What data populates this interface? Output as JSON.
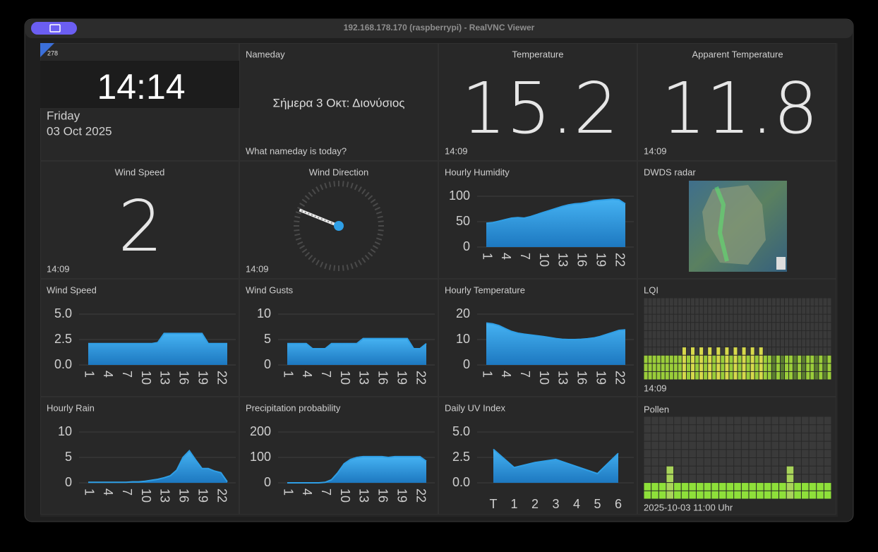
{
  "window": {
    "title": "192.168.178.170 (raspberrypi) - RealVNC Viewer"
  },
  "clock": {
    "badge": 278,
    "time": "14:14",
    "day": "Friday",
    "date": "03 Oct 2025"
  },
  "nameday": {
    "title": "Nameday",
    "text": "Σήμερα 3 Οκτ: Διονύσιος",
    "footer": "What nameday is today?"
  },
  "temperature": {
    "title": "Temperature",
    "value": 15.2,
    "time": "14:09"
  },
  "apparent_temperature": {
    "title": "Apparent Temperature",
    "value": 11.8,
    "time": "14:09"
  },
  "wind_speed": {
    "title": "Wind Speed",
    "value": 2,
    "time": "14:09"
  },
  "wind_direction": {
    "title": "Wind Direction",
    "degrees": 292,
    "time": "14:09"
  },
  "radar": {
    "title": "DWDS radar"
  },
  "lqi": {
    "title": "LQI",
    "time": "14:09",
    "levels": [
      1,
      1,
      1,
      1,
      1,
      1,
      1,
      1,
      1,
      2,
      1,
      2,
      1,
      2,
      1,
      2,
      1,
      2,
      1,
      2,
      1,
      2,
      1,
      2,
      1,
      2,
      1,
      2,
      1,
      1,
      0,
      1,
      0,
      1,
      1,
      0,
      1,
      0,
      1,
      1,
      0,
      1,
      0,
      1
    ]
  },
  "pollen": {
    "title": "Pollen",
    "footer": "2025-10-03 11:00 Uhr",
    "levels": [
      2,
      2,
      2,
      4,
      2,
      2,
      2,
      2,
      2,
      2,
      2,
      2,
      2,
      2,
      2,
      2,
      2,
      2,
      2,
      4,
      2,
      2,
      2,
      2,
      2
    ]
  },
  "chart_data": [
    {
      "type": "area",
      "title": "Hourly Humidity",
      "color": "#2f9fe6",
      "x": [
        1,
        2,
        3,
        4,
        5,
        6,
        7,
        8,
        9,
        10,
        11,
        12,
        13,
        14,
        15,
        16,
        17,
        18,
        19,
        20,
        21,
        22,
        23
      ],
      "xlim": [
        1,
        23
      ],
      "xticks": [
        1,
        4,
        7,
        10,
        13,
        16,
        19,
        22
      ],
      "values": [
        47,
        48,
        51,
        54,
        57,
        58,
        57,
        60,
        64,
        68,
        72,
        76,
        80,
        83,
        85,
        86,
        88,
        91,
        92,
        93,
        94,
        93,
        85
      ],
      "ylim": [
        0,
        100
      ],
      "yticks": [
        0,
        50,
        100
      ]
    },
    {
      "type": "area",
      "title": "Wind Speed",
      "color": "#2f9fe6",
      "x": [
        1,
        2,
        3,
        4,
        5,
        6,
        7,
        8,
        9,
        10,
        11,
        12,
        13,
        14,
        15,
        16,
        17,
        18,
        19,
        20,
        21,
        22,
        23
      ],
      "xlim": [
        1,
        23
      ],
      "xticks": [
        1,
        4,
        7,
        10,
        13,
        16,
        19,
        22
      ],
      "values": [
        2.1,
        2.1,
        2.1,
        2.1,
        2.1,
        2.1,
        2.1,
        2.1,
        2.1,
        2.1,
        2.1,
        2.2,
        3.1,
        3.1,
        3.1,
        3.1,
        3.1,
        3.1,
        3.1,
        2.1,
        2.1,
        2.1,
        2.1
      ],
      "ylim": [
        0,
        5
      ],
      "yticks": [
        {
          "value": 0,
          "label": "0.0"
        },
        2.5,
        {
          "value": 5,
          "label": "5.0"
        }
      ]
    },
    {
      "type": "area",
      "title": "Wind Gusts",
      "color": "#2f9fe6",
      "x": [
        1,
        2,
        3,
        4,
        5,
        6,
        7,
        8,
        9,
        10,
        11,
        12,
        13,
        14,
        15,
        16,
        17,
        18,
        19,
        20,
        21,
        22,
        23
      ],
      "xlim": [
        1,
        23
      ],
      "xticks": [
        1,
        4,
        7,
        10,
        13,
        16,
        19,
        22
      ],
      "values": [
        4.2,
        4.2,
        4.2,
        4.2,
        3.2,
        3.2,
        3.2,
        4.2,
        4.2,
        4.2,
        4.2,
        4.2,
        5.2,
        5.2,
        5.2,
        5.2,
        5.2,
        5.2,
        5.2,
        5.2,
        3.2,
        3.2,
        4.2
      ],
      "ylim": [
        0,
        10
      ],
      "yticks": [
        0,
        5,
        10
      ]
    },
    {
      "type": "area",
      "title": "Hourly Temperature",
      "color": "#2f9fe6",
      "x": [
        1,
        2,
        3,
        4,
        5,
        6,
        7,
        8,
        9,
        10,
        11,
        12,
        13,
        14,
        15,
        16,
        17,
        18,
        19,
        20,
        21,
        22,
        23
      ],
      "xlim": [
        1,
        23
      ],
      "xticks": [
        1,
        4,
        7,
        10,
        13,
        16,
        19,
        22
      ],
      "values": [
        16.5,
        16.2,
        15.5,
        14.3,
        13.2,
        12.5,
        12.1,
        11.8,
        11.5,
        11.2,
        10.8,
        10.4,
        10.1,
        10,
        10,
        10.1,
        10.3,
        10.6,
        11.2,
        12,
        12.8,
        13.6,
        13.8
      ],
      "ylim": [
        0,
        20
      ],
      "yticks": [
        0,
        10,
        20
      ]
    },
    {
      "type": "area",
      "title": "Hourly Rain",
      "color": "#2f9fe6",
      "x": [
        1,
        2,
        3,
        4,
        5,
        6,
        7,
        8,
        9,
        10,
        11,
        12,
        13,
        14,
        15,
        16,
        17,
        18,
        19,
        20,
        21,
        22,
        23
      ],
      "xlim": [
        1,
        23
      ],
      "xticks": [
        1,
        4,
        7,
        10,
        13,
        16,
        19,
        22
      ],
      "values": [
        0.1,
        0.1,
        0.1,
        0.1,
        0.1,
        0.1,
        0.1,
        0.2,
        0.2,
        0.3,
        0.5,
        0.7,
        1,
        1.4,
        2.5,
        5,
        6.3,
        4.5,
        2.8,
        2.8,
        2.3,
        2,
        0.2
      ],
      "ylim": [
        0,
        10
      ],
      "yticks": [
        0,
        5,
        10
      ]
    },
    {
      "type": "area",
      "title": "Precipitation probability",
      "color": "#2f9fe6",
      "x": [
        1,
        2,
        3,
        4,
        5,
        6,
        7,
        8,
        9,
        10,
        11,
        12,
        13,
        14,
        15,
        16,
        17,
        18,
        19,
        20,
        21,
        22,
        23
      ],
      "xlim": [
        1,
        23
      ],
      "xticks": [
        1,
        4,
        7,
        10,
        13,
        16,
        19,
        22
      ],
      "values": [
        0,
        0,
        0,
        0,
        0,
        0,
        2,
        12,
        40,
        75,
        92,
        100,
        103,
        103,
        103,
        103,
        100,
        103,
        103,
        103,
        103,
        103,
        85
      ],
      "ylim": [
        0,
        200
      ],
      "yticks": [
        0,
        100,
        200
      ]
    },
    {
      "type": "area",
      "title": "Daily UV Index",
      "color": "#2f9fe6",
      "categories": [
        "T",
        "1",
        "2",
        "3",
        "4",
        "5",
        "6"
      ],
      "values": [
        3.3,
        1.5,
        2.0,
        2.3,
        1.6,
        0.9,
        2.9
      ],
      "ylim": [
        0,
        5
      ],
      "yticks": [
        {
          "value": 0,
          "label": "0.0"
        },
        2.5,
        {
          "value": 5,
          "label": "5.0"
        }
      ]
    }
  ]
}
